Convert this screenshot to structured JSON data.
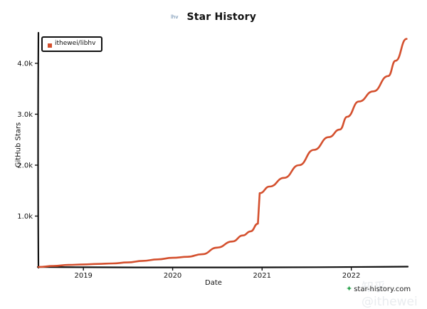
{
  "chart_data": {
    "type": "line",
    "title": "Star History",
    "title_icon_text": "lhv",
    "xlabel": "Date",
    "ylabel": "GitHub Stars",
    "xlim": [
      "2018-07-01",
      "2022-08-20"
    ],
    "ylim": [
      0,
      4600
    ],
    "x_ticks": [
      {
        "date": "2019-01-01",
        "label": "2019"
      },
      {
        "date": "2020-01-01",
        "label": "2020"
      },
      {
        "date": "2021-01-01",
        "label": "2021"
      },
      {
        "date": "2022-01-01",
        "label": "2022"
      }
    ],
    "y_ticks": [
      {
        "value": 1000,
        "label": "1.0k"
      },
      {
        "value": 2000,
        "label": "2.0k"
      },
      {
        "value": 3000,
        "label": "3.0k"
      },
      {
        "value": 4000,
        "label": "4.0k"
      }
    ],
    "legend_position": "top-left",
    "grid": false,
    "colors": {
      "series": "#d4502e",
      "axis": "#111111"
    },
    "series": [
      {
        "name": "ithewei/libhv",
        "points": [
          [
            "2018-07-01",
            0
          ],
          [
            "2018-09-01",
            20
          ],
          [
            "2018-11-01",
            40
          ],
          [
            "2019-01-01",
            50
          ],
          [
            "2019-03-01",
            60
          ],
          [
            "2019-05-01",
            70
          ],
          [
            "2019-07-01",
            90
          ],
          [
            "2019-09-01",
            120
          ],
          [
            "2019-11-01",
            150
          ],
          [
            "2020-01-01",
            180
          ],
          [
            "2020-03-01",
            200
          ],
          [
            "2020-05-01",
            250
          ],
          [
            "2020-07-01",
            380
          ],
          [
            "2020-09-01",
            500
          ],
          [
            "2020-10-15",
            620
          ],
          [
            "2020-11-15",
            700
          ],
          [
            "2020-12-15",
            850
          ],
          [
            "2020-12-22",
            1450
          ],
          [
            "2021-02-01",
            1580
          ],
          [
            "2021-04-01",
            1750
          ],
          [
            "2021-06-01",
            2000
          ],
          [
            "2021-08-01",
            2300
          ],
          [
            "2021-10-01",
            2550
          ],
          [
            "2021-11-15",
            2700
          ],
          [
            "2021-12-15",
            2950
          ],
          [
            "2022-02-01",
            3250
          ],
          [
            "2022-04-01",
            3450
          ],
          [
            "2022-06-01",
            3750
          ],
          [
            "2022-07-01",
            4050
          ],
          [
            "2022-08-15",
            4480
          ]
        ]
      }
    ]
  },
  "watermark": "知乎 @ithewei",
  "brand": {
    "text": "star-history.com"
  }
}
